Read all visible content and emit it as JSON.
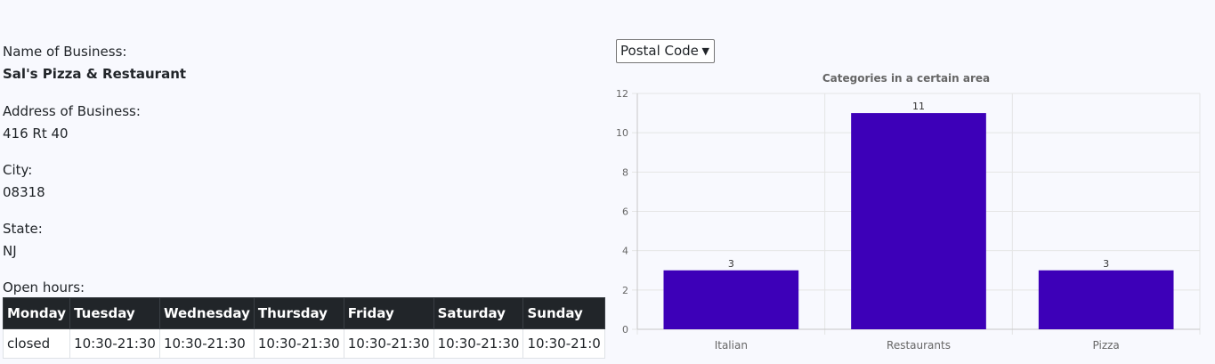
{
  "business": {
    "name_label": "Name of Business:",
    "name_value": "Sal's Pizza & Restaurant",
    "address_label": "Address of Business:",
    "address_value": "416 Rt 40",
    "city_label": "City:",
    "city_value": "08318",
    "state_label": "State:",
    "state_value": "NJ",
    "hours_label": "Open hours:"
  },
  "hours": {
    "days": [
      "Monday",
      "Tuesday",
      "Wednesday",
      "Thursday",
      "Friday",
      "Saturday",
      "Sunday"
    ],
    "times": [
      "closed",
      "10:30-21:30",
      "10:30-21:30",
      "10:30-21:30",
      "10:30-21:30",
      "10:30-21:30",
      "10:30-21:0"
    ]
  },
  "filter": {
    "selected": "Postal Code"
  },
  "colors": {
    "bar": "#3d00b8",
    "grid": "#e5e5e5",
    "axis_text": "#666666"
  },
  "chart_data": {
    "type": "bar",
    "title": "Categories in a certain area",
    "categories": [
      "Italian",
      "Restaurants",
      "Pizza"
    ],
    "values": [
      3,
      11,
      3
    ],
    "data_labels": [
      "3",
      "11",
      "3"
    ],
    "ylim": [
      0,
      12
    ],
    "yticks": [
      "0",
      "2",
      "4",
      "6",
      "8",
      "10",
      "12"
    ],
    "xlabel": "",
    "ylabel": "",
    "grid": true
  }
}
